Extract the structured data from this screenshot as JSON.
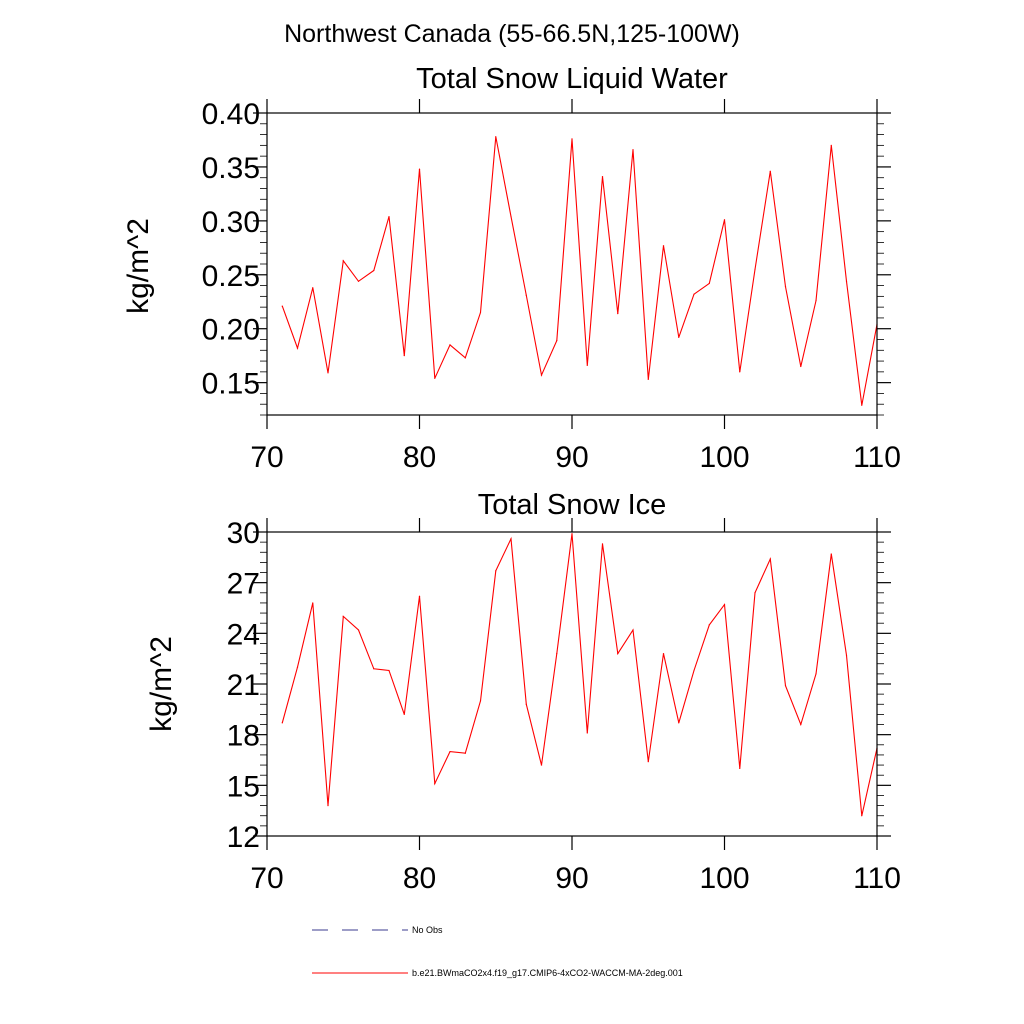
{
  "page_title": "Northwest Canada (55-66.5N,125-100W)",
  "colors": {
    "series": "#ff0000",
    "no_obs": "#3b3b8f",
    "axis": "#000000"
  },
  "legend": {
    "no_obs_label": "No Obs",
    "model_label": "b.e21.BWmaCO2x4.f19_g17.CMIP6-4xCO2-WACCM-MA-2deg.001"
  },
  "chart_data": [
    {
      "type": "line",
      "title": "Total Snow Liquid Water",
      "xlabel": "",
      "ylabel": "kg/m^2",
      "xlim": [
        70,
        110
      ],
      "ylim": [
        0.12,
        0.4
      ],
      "xticks": [
        70,
        80,
        90,
        100,
        110
      ],
      "xtick_labels": [
        "70",
        "80",
        "90",
        "100",
        "110"
      ],
      "yticks": [
        0.15,
        0.2,
        0.25,
        0.3,
        0.35,
        0.4
      ],
      "ytick_labels": [
        "0.15",
        "0.20",
        "0.25",
        "0.30",
        "0.35",
        "0.40"
      ],
      "x": [
        71,
        72,
        73,
        74,
        75,
        76,
        77,
        78,
        79,
        80,
        81,
        82,
        83,
        84,
        85,
        86,
        87,
        88,
        89,
        90,
        91,
        92,
        93,
        94,
        95,
        96,
        97,
        98,
        99,
        100,
        101,
        102,
        103,
        104,
        105,
        106,
        107,
        108,
        109,
        110
      ],
      "series": [
        {
          "values": [
            0.221,
            0.182,
            0.238,
            0.159,
            0.263,
            0.244,
            0.254,
            0.304,
            0.175,
            0.348,
            0.154,
            0.185,
            0.173,
            0.215,
            0.378,
            0.304,
            0.231,
            0.157,
            0.189,
            0.376,
            0.166,
            0.341,
            0.214,
            0.366,
            0.153,
            0.277,
            0.192,
            0.232,
            0.242,
            0.301,
            0.16,
            0.255,
            0.346,
            0.239,
            0.165,
            0.226,
            0.37,
            0.244,
            0.129,
            0.204
          ]
        }
      ]
    },
    {
      "type": "line",
      "title": "Total Snow Ice",
      "xlabel": "",
      "ylabel": "kg/m^2",
      "xlim": [
        70,
        110
      ],
      "ylim": [
        12,
        30
      ],
      "xticks": [
        70,
        80,
        90,
        100,
        110
      ],
      "xtick_labels": [
        "70",
        "80",
        "90",
        "100",
        "110"
      ],
      "yticks": [
        12,
        15,
        18,
        21,
        24,
        27,
        30
      ],
      "ytick_labels": [
        "12",
        "15",
        "18",
        "21",
        "24",
        "27",
        "30"
      ],
      "x": [
        71,
        72,
        73,
        74,
        75,
        76,
        77,
        78,
        79,
        80,
        81,
        82,
        83,
        84,
        85,
        86,
        87,
        88,
        89,
        90,
        91,
        92,
        93,
        94,
        95,
        96,
        97,
        98,
        99,
        100,
        101,
        102,
        103,
        104,
        105,
        106,
        107,
        108,
        109,
        110
      ],
      "series": [
        {
          "values": [
            18.7,
            22.0,
            25.8,
            13.8,
            25.0,
            24.2,
            21.9,
            21.8,
            19.2,
            26.2,
            15.1,
            17.0,
            16.9,
            20.0,
            27.7,
            29.6,
            19.8,
            16.2,
            22.8,
            29.9,
            18.1,
            29.3,
            22.8,
            24.2,
            16.4,
            22.8,
            18.7,
            21.8,
            24.5,
            25.7,
            16.0,
            26.4,
            28.4,
            20.9,
            18.6,
            21.6,
            28.7,
            22.7,
            13.2,
            17.2
          ]
        }
      ]
    }
  ]
}
